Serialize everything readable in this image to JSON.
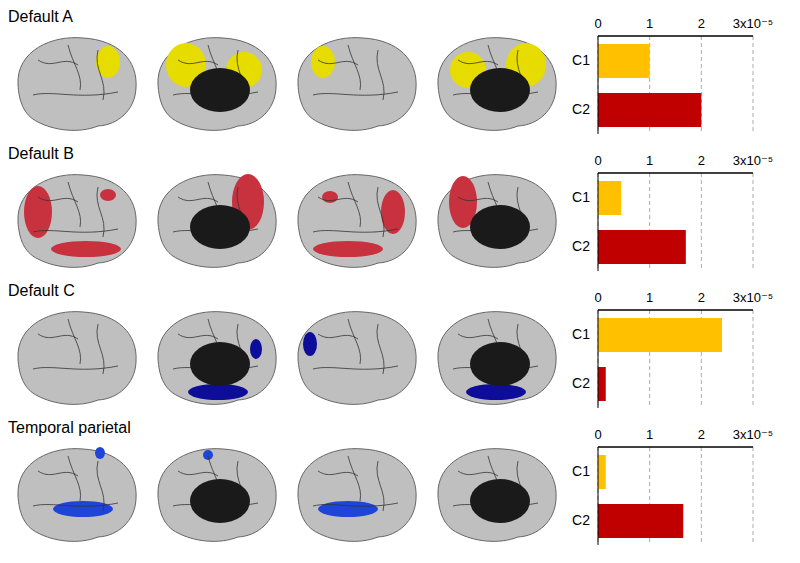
{
  "chart_data": [
    {
      "type": "bar",
      "title": "Default A",
      "orientation": "horizontal",
      "categories": [
        "C1",
        "C2"
      ],
      "values": [
        1.0,
        2.0
      ],
      "colors": [
        "#FFC000",
        "#C00000"
      ],
      "xlim": [
        0,
        3
      ],
      "xticks": [
        0,
        1,
        2,
        {
          "value": 3,
          "label": "3x10⁻⁵"
        }
      ],
      "grid": true
    },
    {
      "type": "bar",
      "title": "Default B",
      "orientation": "horizontal",
      "categories": [
        "C1",
        "C2"
      ],
      "values": [
        0.45,
        1.7
      ],
      "colors": [
        "#FFC000",
        "#C00000"
      ],
      "xlim": [
        0,
        3
      ],
      "xticks": [
        0,
        1,
        2,
        {
          "value": 3,
          "label": "3x10⁻⁵"
        }
      ],
      "grid": true
    },
    {
      "type": "bar",
      "title": "Default C",
      "orientation": "horizontal",
      "categories": [
        "C1",
        "C2"
      ],
      "values": [
        2.4,
        0.15
      ],
      "colors": [
        "#FFC000",
        "#C00000"
      ],
      "xlim": [
        0,
        3
      ],
      "xticks": [
        0,
        1,
        2,
        {
          "value": 3,
          "label": "3x10⁻⁵"
        }
      ],
      "grid": true
    },
    {
      "type": "bar",
      "title": "Temporal parietal",
      "orientation": "horizontal",
      "categories": [
        "C1",
        "C2"
      ],
      "values": [
        0.15,
        1.65
      ],
      "colors": [
        "#FFC000",
        "#C00000"
      ],
      "xlim": [
        0,
        3
      ],
      "xticks": [
        0,
        1,
        2,
        {
          "value": 3,
          "label": "3x10⁻⁵"
        }
      ],
      "grid": true
    }
  ]
}
